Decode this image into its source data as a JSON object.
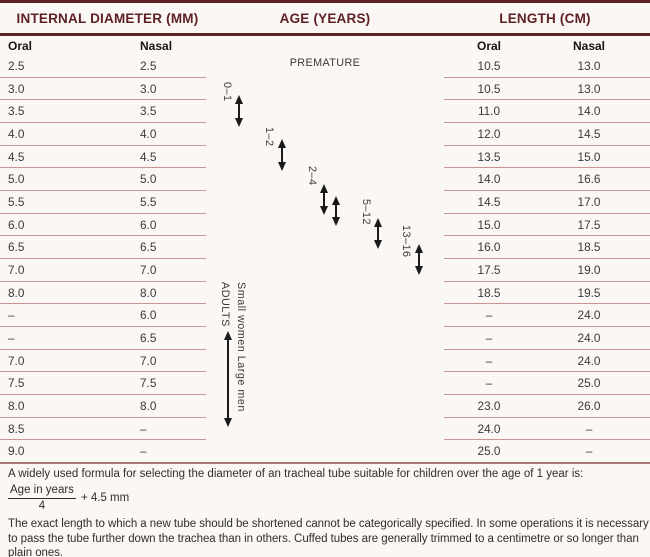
{
  "header": {
    "internal_diameter": "INTERNAL DIAMETER (MM)",
    "age": "AGE (YEARS)",
    "length": "LENGTH (CM)"
  },
  "subheader": {
    "left_oral": "Oral",
    "left_nasal": "Nasal",
    "right_oral": "Oral",
    "right_nasal": "Nasal"
  },
  "age_labels": {
    "premature": "PREMATURE",
    "age_0_1": "0–1",
    "age_1_2": "1–2",
    "age_2_4": "2–4",
    "age_5_12": "5–12",
    "age_13_16": "13–16",
    "adults": "ADULTS",
    "size_note": "Small women Large men"
  },
  "table": {
    "columns": [
      "Oral internal diameter (mm)",
      "Nasal internal diameter (mm)",
      "Oral length (cm)",
      "Nasal length (cm)"
    ],
    "rows": [
      [
        "2.5",
        "2.5",
        "10.5",
        "13.0"
      ],
      [
        "3.0",
        "3.0",
        "10.5",
        "13.0"
      ],
      [
        "3.5",
        "3.5",
        "11.0",
        "14.0"
      ],
      [
        "4.0",
        "4.0",
        "12.0",
        "14.5"
      ],
      [
        "4.5",
        "4.5",
        "13.5",
        "15.0"
      ],
      [
        "5.0",
        "5.0",
        "14.0",
        "16.6"
      ],
      [
        "5.5",
        "5.5",
        "14.5",
        "17.0"
      ],
      [
        "6.0",
        "6.0",
        "15.0",
        "17.5"
      ],
      [
        "6.5",
        "6.5",
        "16.0",
        "18.5"
      ],
      [
        "7.0",
        "7.0",
        "17.5",
        "19.0"
      ],
      [
        "8.0",
        "8.0",
        "18.5",
        "19.5"
      ],
      [
        "–",
        "6.0",
        "–",
        "24.0"
      ],
      [
        "–",
        "6.5",
        "–",
        "24.0"
      ],
      [
        "7.0",
        "7.0",
        "–",
        "24.0"
      ],
      [
        "7.5",
        "7.5",
        "–",
        "25.0"
      ],
      [
        "8.0",
        "8.0",
        "23.0",
        "26.0"
      ],
      [
        "8.5",
        "–",
        "24.0",
        "–"
      ],
      [
        "9.0",
        "–",
        "25.0",
        "–"
      ]
    ]
  },
  "footer": {
    "line1": "A widely used formula for selecting the diameter of an tracheal tube suitable for children over the age of 1 year is:",
    "formula_numerator": "Age in years",
    "formula_denominator": "4",
    "formula_suffix": "+ 4.5 mm",
    "line2": "The exact length to which a new tube should be shortened cannot be categorically specified. In some operations it is necessary to pass the tube further down the trachea than in others. Cuffed tubes are generally trimmed to a centimetre or so longer than plain ones."
  },
  "colors": {
    "maroon_text": "#5e2125",
    "maroon_rule": "#5e2125",
    "row_line": "#c59693",
    "bottom_rule": "#aa7a79",
    "body_text": "#2e2e2e",
    "arrow": "#1a1a1a"
  }
}
